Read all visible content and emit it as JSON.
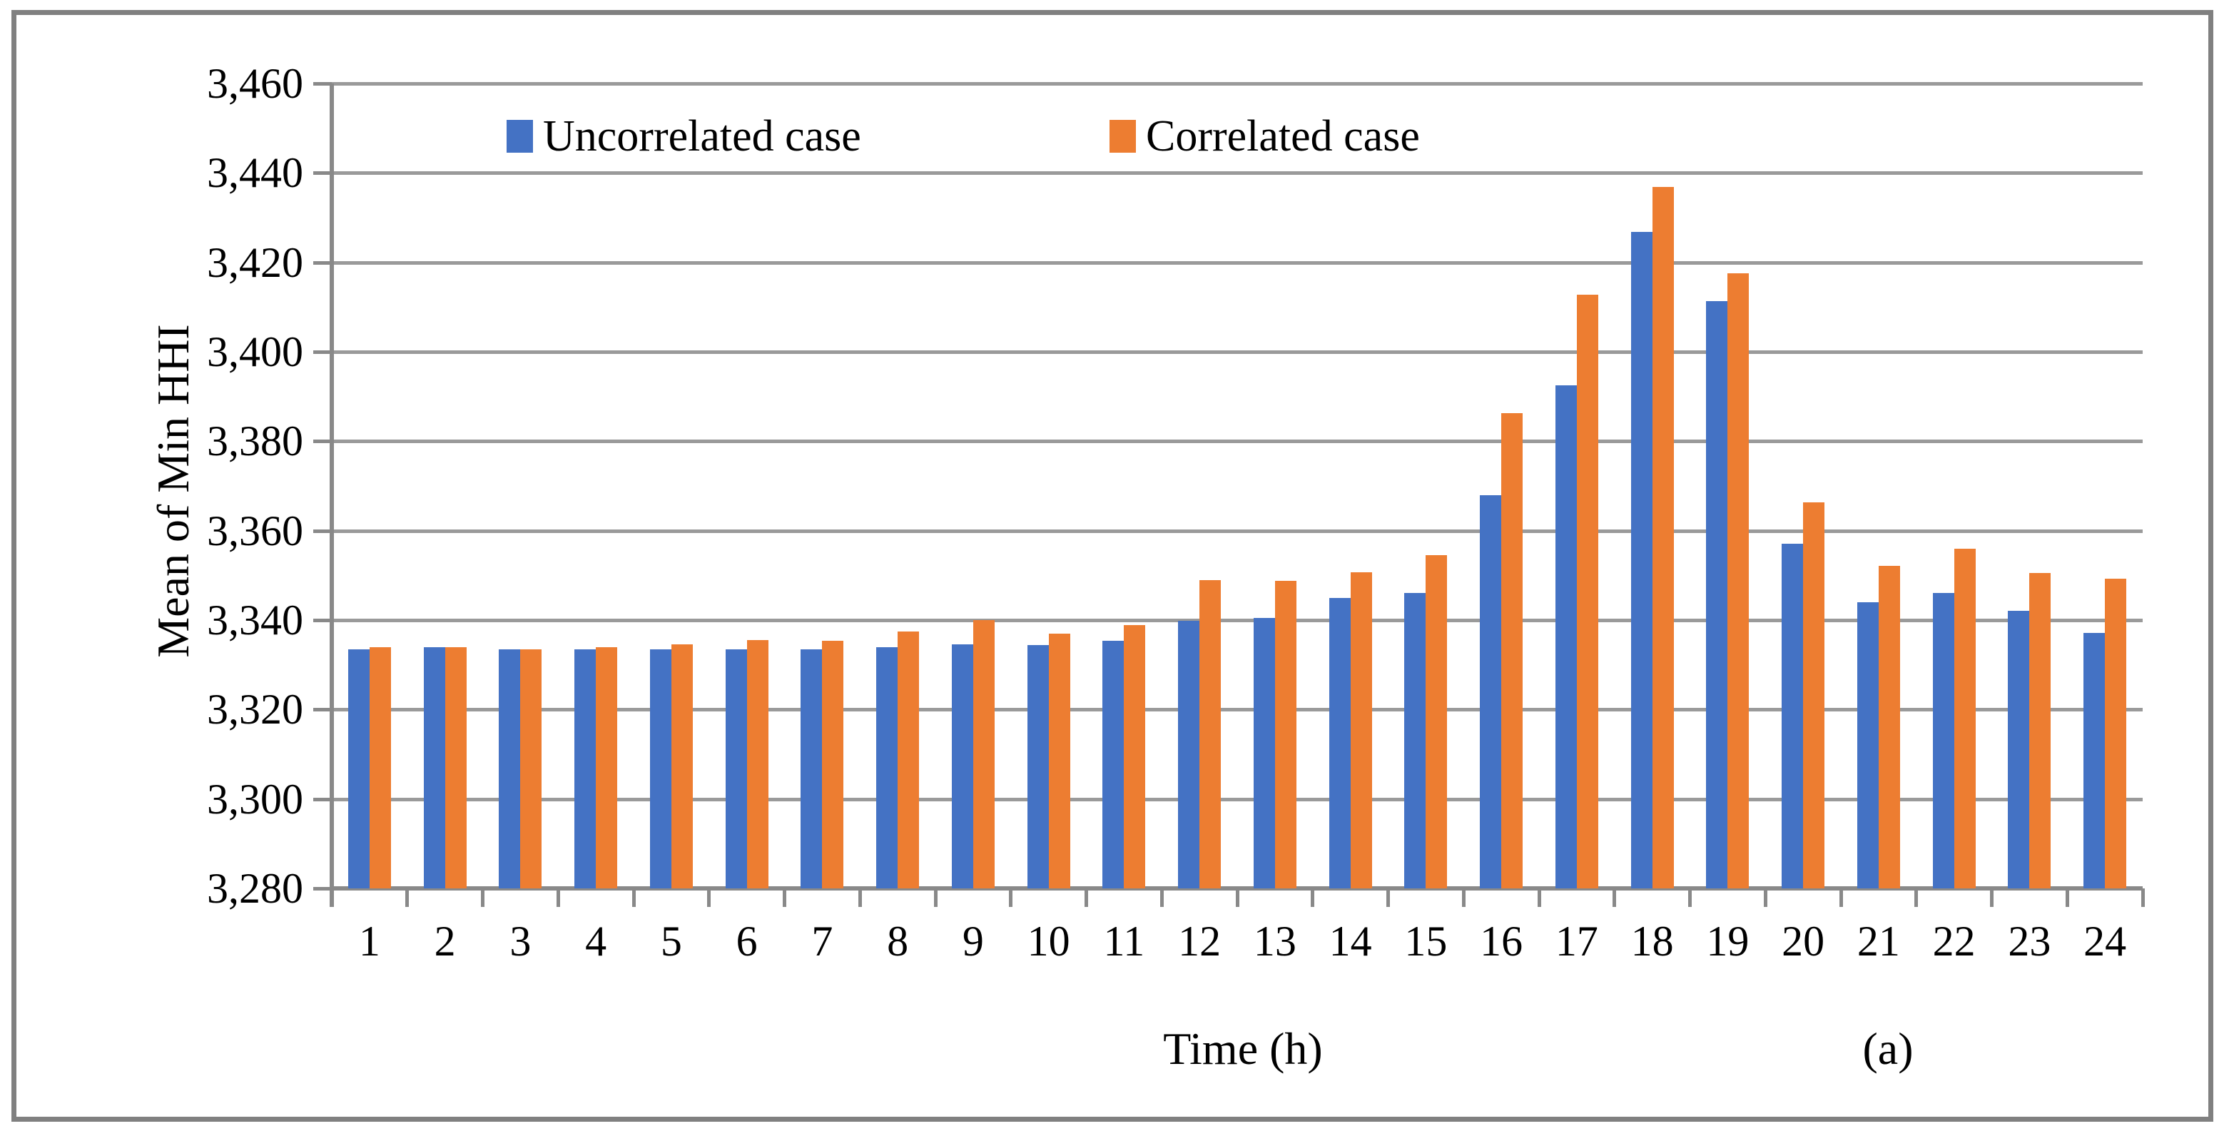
{
  "figure": {
    "background_color": "#FFFFFF",
    "border_color": "#808080"
  },
  "chart_data": {
    "type": "bar",
    "title": "",
    "xlabel": "Time (h)",
    "ylabel": "Mean of Min HHI",
    "panel_label": "(a)",
    "categories": [
      "1",
      "2",
      "3",
      "4",
      "5",
      "6",
      "7",
      "8",
      "9",
      "10",
      "11",
      "12",
      "13",
      "14",
      "15",
      "16",
      "17",
      "18",
      "19",
      "20",
      "21",
      "22",
      "23",
      "24"
    ],
    "series": [
      {
        "name": "Uncorrelated case",
        "color": "#4472C4",
        "values": [
          3333.5,
          3334.0,
          3333.5,
          3333.5,
          3333.5,
          3333.5,
          3333.5,
          3334.0,
          3334.6,
          3334.4,
          3335.4,
          3339.8,
          3340.5,
          3345.0,
          3346.0,
          3368.0,
          3392.5,
          3426.8,
          3411.3,
          3357.0,
          3344.0,
          3346.0,
          3342.0,
          3337.2
        ]
      },
      {
        "name": "Correlated case",
        "color": "#ED7D31",
        "values": [
          3334.0,
          3334.0,
          3333.5,
          3334.0,
          3334.5,
          3335.5,
          3335.3,
          3337.5,
          3340.0,
          3337.0,
          3338.9,
          3349.0,
          3348.7,
          3350.7,
          3354.5,
          3386.3,
          3412.8,
          3436.8,
          3417.5,
          3366.3,
          3352.2,
          3356.0,
          3350.6,
          3349.2
        ]
      }
    ],
    "ylim": [
      3280,
      3460
    ],
    "ytick_step": 20,
    "ytick_labels": [
      "3,280",
      "3,300",
      "3,320",
      "3,340",
      "3,360",
      "3,380",
      "3,400",
      "3,420",
      "3,440",
      "3,460"
    ],
    "grid": "horizontal",
    "grid_color": "#9A9A9A",
    "axis_color": "#898989",
    "legend_position": "top-inside"
  }
}
